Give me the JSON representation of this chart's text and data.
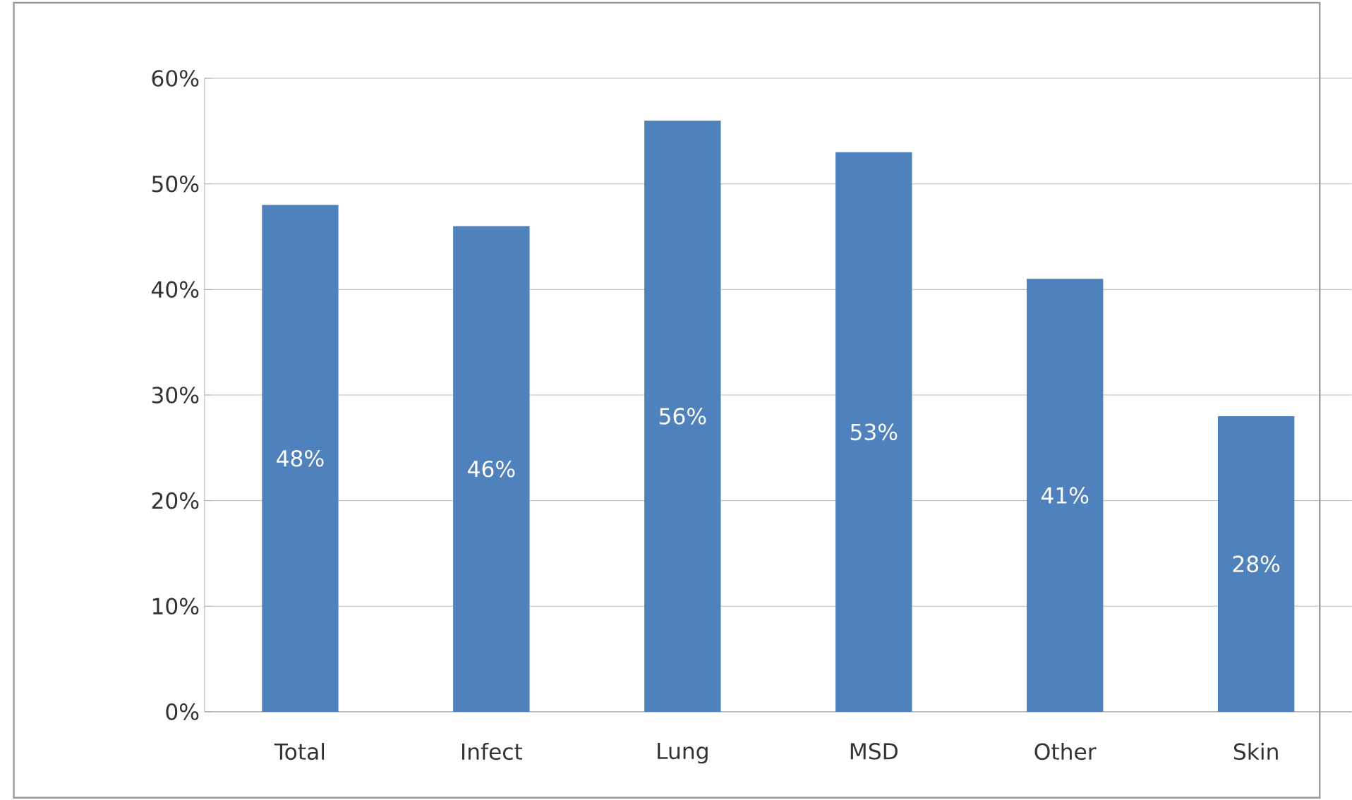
{
  "chart_data": {
    "type": "bar",
    "categories": [
      "Total",
      "Infect",
      "Lung",
      "MSD",
      "Other",
      "Skin"
    ],
    "values": [
      48,
      46,
      56,
      53,
      41,
      28
    ],
    "value_labels": [
      "48%",
      "46%",
      "56%",
      "53%",
      "41%",
      "28%"
    ],
    "color": "#4f81bd",
    "ylim": [
      0,
      60
    ],
    "yticks": [
      {
        "value": 0,
        "label": "0%"
      },
      {
        "value": 10,
        "label": "10%"
      },
      {
        "value": 20,
        "label": "20%"
      },
      {
        "value": 30,
        "label": "30%"
      },
      {
        "value": 40,
        "label": "40%"
      },
      {
        "value": 50,
        "label": "50%"
      },
      {
        "value": 60,
        "label": "60%"
      }
    ],
    "grid": "y"
  }
}
